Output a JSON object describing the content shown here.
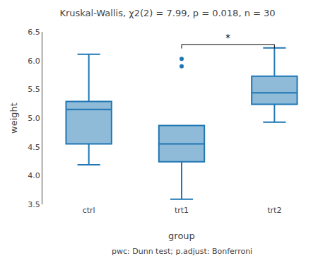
{
  "chart_data": {
    "type": "box",
    "title": "Kruskal-Wallis, χ2(2) = 7.99, p = 0.018, n = 30",
    "x_label": "group",
    "y_label": "weight",
    "categories": [
      "ctrl",
      "trt1",
      "trt2"
    ],
    "boxes": [
      {
        "q1": 4.55,
        "median": 5.15,
        "q3": 5.29,
        "whisker_low": 4.19,
        "whisker_high": 6.11,
        "outliers": []
      },
      {
        "q1": 4.24,
        "median": 4.55,
        "q3": 4.87,
        "whisker_low": 3.59,
        "whisker_high": 4.87,
        "outliers": [
          5.9,
          6.03
        ]
      },
      {
        "q1": 5.24,
        "median": 5.44,
        "q3": 5.73,
        "whisker_low": 4.93,
        "whisker_high": 6.22,
        "outliers": []
      }
    ],
    "bracket": {
      "group1": "trt1",
      "group2": "trt2",
      "y": 6.28,
      "height": 0.07,
      "label": "*"
    },
    "footnote": "pwc: Dunn test; p.adjust: Bonferroni",
    "ylim": [
      3.5,
      6.5
    ],
    "yticks": [
      3.5,
      {
        "value": 4,
        "label": "4.0"
      },
      4.5,
      {
        "value": 5,
        "label": "5.0"
      },
      5.5,
      {
        "value": 6,
        "label": "6.0"
      },
      6.5
    ],
    "grid": false
  }
}
